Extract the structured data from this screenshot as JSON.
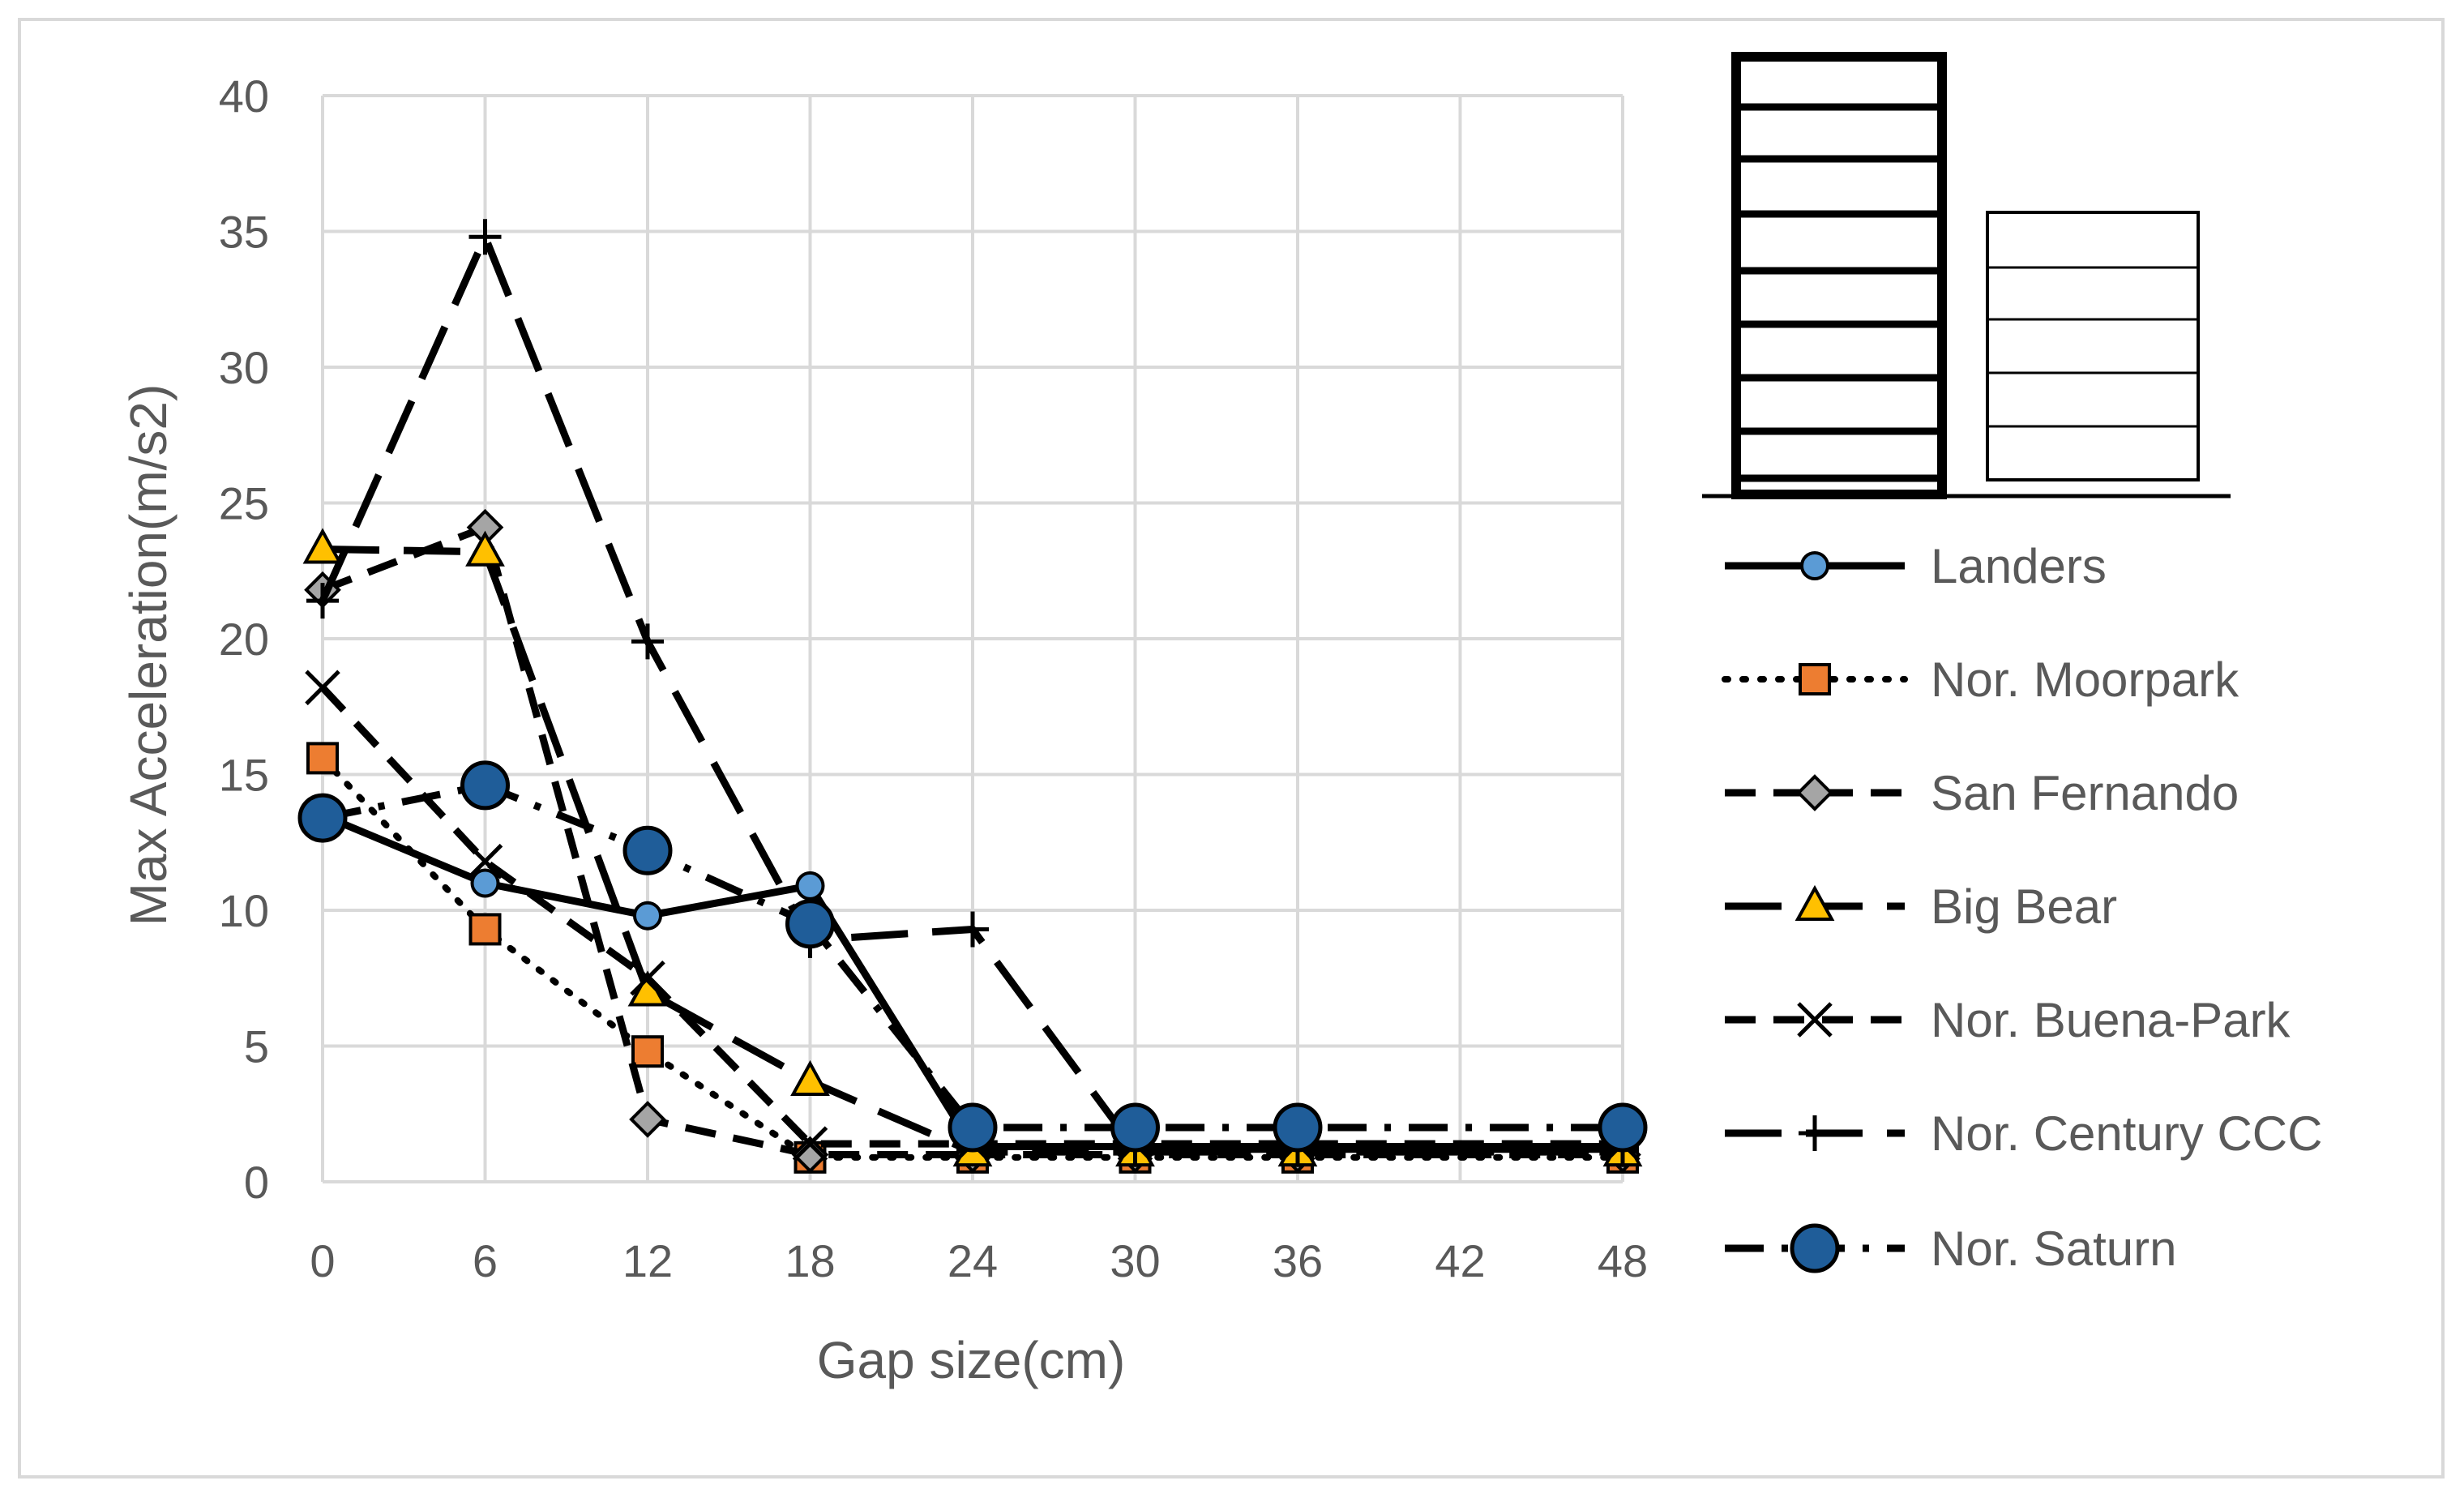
{
  "chart_data": {
    "type": "line",
    "title": "",
    "xlabel": "Gap size(cm)",
    "ylabel": "Max Acceleration(m/s2)",
    "x": [
      0,
      6,
      12,
      18,
      24,
      30,
      36,
      42,
      48
    ],
    "xlim": [
      0,
      48
    ],
    "ylim": [
      0,
      40
    ],
    "xticks": [
      "0",
      "6",
      "12",
      "18",
      "24",
      "30",
      "36",
      "42",
      "48"
    ],
    "yticks": [
      "0",
      "5",
      "10",
      "15",
      "20",
      "25",
      "30",
      "35",
      "40"
    ],
    "grid": true,
    "legend_position": "right",
    "series": [
      {
        "name": "Landers",
        "dash": "solid",
        "marker": "circle",
        "marker_color": "#5b9bd5",
        "x": [
          0,
          6,
          12,
          18,
          24,
          30,
          36,
          48
        ],
        "values": [
          13.5,
          11.0,
          9.8,
          10.9,
          1.3,
          1.3,
          1.3,
          1.3
        ]
      },
      {
        "name": "Nor. Moorpark",
        "dash": "dot",
        "marker": "square",
        "marker_color": "#ed7d31",
        "x": [
          0,
          6,
          12,
          18,
          24,
          30,
          36,
          48
        ],
        "values": [
          15.6,
          9.3,
          4.8,
          0.9,
          0.9,
          0.9,
          0.9,
          0.9
        ]
      },
      {
        "name": "San Fernando",
        "dash": "dash",
        "marker": "diamond",
        "marker_color": "#a5a5a5",
        "x": [
          0,
          6,
          12,
          18,
          24,
          30,
          36,
          48
        ],
        "values": [
          21.8,
          24.1,
          2.3,
          1.0,
          1.0,
          1.0,
          1.0,
          1.0
        ]
      },
      {
        "name": "Big Bear",
        "dash": "longdash",
        "marker": "triangle",
        "marker_color": "#ffc000",
        "x": [
          0,
          6,
          12,
          18,
          24,
          30,
          36,
          48
        ],
        "values": [
          23.3,
          23.2,
          7.0,
          3.7,
          1.1,
          1.1,
          1.1,
          1.1
        ]
      },
      {
        "name": "Nor. Buena-Park",
        "dash": "dash",
        "marker": "x",
        "marker_color": "#000000",
        "x": [
          0,
          6,
          12,
          18,
          24,
          30,
          36,
          48
        ],
        "values": [
          18.2,
          11.8,
          7.5,
          1.4,
          1.4,
          1.4,
          1.4,
          1.4
        ]
      },
      {
        "name": "Nor. Century CCC",
        "dash": "longdash",
        "marker": "plus",
        "marker_color": "#000000",
        "x": [
          0,
          6,
          12,
          18,
          24,
          30,
          36,
          48
        ],
        "values": [
          21.4,
          34.8,
          19.9,
          8.9,
          9.3,
          1.2,
          1.2,
          1.2
        ]
      },
      {
        "name": "Nor. Saturn",
        "dash": "dashdot",
        "marker": "bigcircle",
        "marker_color": "#1f5d99",
        "x": [
          0,
          6,
          12,
          18,
          24,
          30,
          36,
          48
        ],
        "values": [
          13.4,
          14.6,
          12.2,
          9.5,
          2.0,
          2.0,
          2.0,
          2.0
        ]
      }
    ]
  }
}
